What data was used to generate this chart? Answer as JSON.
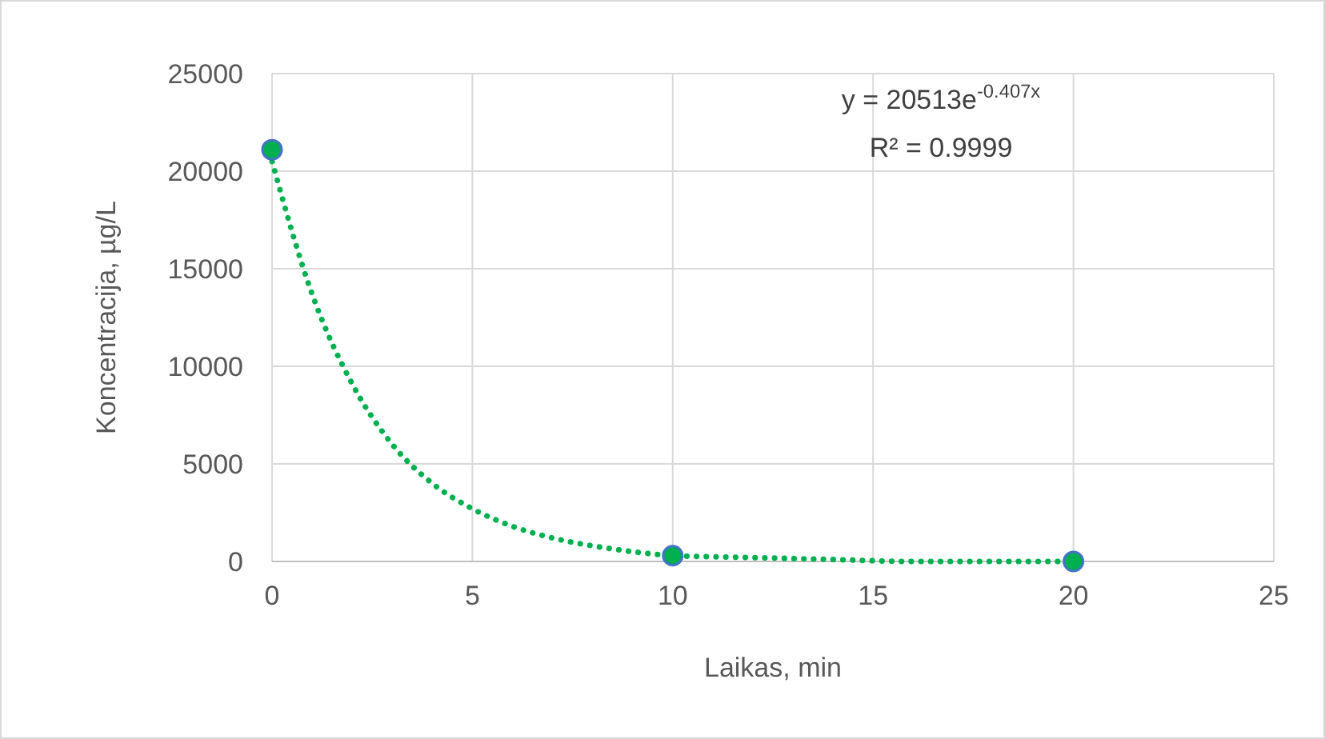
{
  "chart_data": {
    "type": "scatter",
    "xlabel": "Laikas, min",
    "ylabel": "Koncentracija, µg/L",
    "xlim": [
      0,
      25
    ],
    "xticks": [
      0,
      5,
      10,
      15,
      20,
      25
    ],
    "ylim": [
      0,
      25000
    ],
    "yticks": [
      0,
      5000,
      10000,
      15000,
      20000,
      25000
    ],
    "grid": true,
    "annotations": [
      "y = 20513e$^{-0.407x}$",
      "R² = 0.9999"
    ],
    "series": [
      {
        "color": "#00b050",
        "marker": "circle",
        "x": [
          0,
          10,
          20
        ],
        "values": [
          21100,
          300,
          0
        ]
      },
      {
        "type": "line",
        "color": "#00b050",
        "marker": "none",
        "line_style": "dotted",
        "x": [
          0,
          1,
          2,
          3,
          4,
          5,
          6,
          7,
          8,
          9,
          10,
          12,
          14,
          16,
          18,
          20
        ],
        "values": [
          20500,
          13700,
          9100,
          6000,
          4000,
          2700,
          1800,
          1200,
          800,
          500,
          300,
          200,
          100,
          0,
          0,
          0
        ]
      }
    ]
  }
}
